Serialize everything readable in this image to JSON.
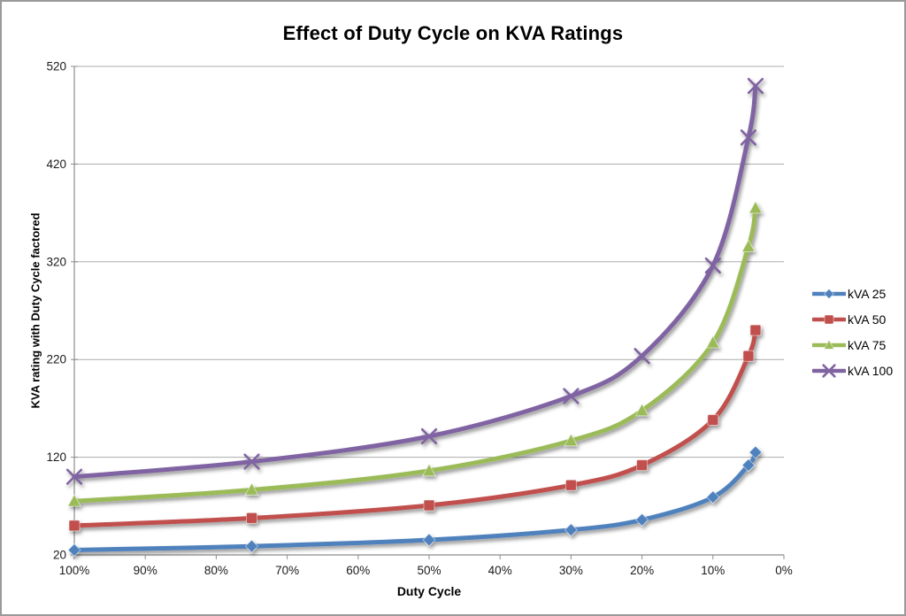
{
  "title": "Effect of Duty Cycle on KVA Ratings",
  "chart_data": {
    "type": "line",
    "subtype": "smoothed-lines-with-markers",
    "title": "Effect of Duty Cycle on KVA Ratings",
    "xlabel": "Duty Cycle",
    "ylabel": "KVA rating with Duty Cycle factored",
    "x_axis_reversed": true,
    "x_tick_labels": [
      "100%",
      "90%",
      "80%",
      "70%",
      "60%",
      "50%",
      "40%",
      "30%",
      "20%",
      "10%",
      "0%"
    ],
    "x_tick_values_pct": [
      100,
      90,
      80,
      70,
      60,
      50,
      40,
      30,
      20,
      10,
      0
    ],
    "y_ticks": [
      20,
      120,
      220,
      320,
      420,
      520
    ],
    "ylim": [
      20,
      520
    ],
    "xlim_pct": [
      100,
      0
    ],
    "grid": "horizontal",
    "legend_position": "right",
    "duty_cycle_pct": [
      100,
      75,
      50,
      30,
      20,
      10,
      5,
      4
    ],
    "series": [
      {
        "name": "kVA 25",
        "color": "#4F81BD",
        "marker": "diamond",
        "values": [
          25.0,
          28.9,
          35.4,
          45.6,
          55.9,
          79.1,
          111.8,
          125.0
        ]
      },
      {
        "name": "kVA 50",
        "color": "#C0504D",
        "marker": "square",
        "values": [
          50.0,
          57.7,
          70.7,
          91.3,
          111.8,
          158.1,
          223.6,
          250.0
        ]
      },
      {
        "name": "kVA 75",
        "color": "#9BBB59",
        "marker": "triangle",
        "values": [
          75.0,
          86.6,
          106.1,
          136.9,
          167.7,
          237.2,
          335.4,
          375.0
        ]
      },
      {
        "name": "kVA 100",
        "color": "#8064A2",
        "marker": "x",
        "values": [
          100.0,
          115.5,
          141.4,
          182.6,
          223.6,
          316.2,
          447.2,
          500.0
        ]
      }
    ],
    "style": {
      "gridline_color": "#ababab",
      "axis_color": "#8c8c8c",
      "tick_label_color": "#1a1a1a",
      "line_width": 5,
      "shadow": true
    }
  }
}
